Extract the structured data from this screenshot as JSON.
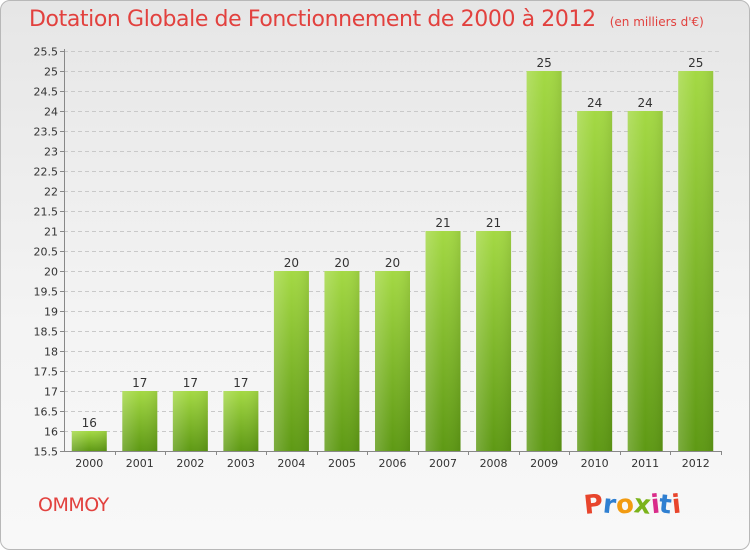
{
  "header": {
    "title": "Dotation Globale de Fonctionnement de 2000 à 2012",
    "unit_note": "(en milliers d'€)"
  },
  "footer": {
    "commune": "OMMOY",
    "brand": "Proxiti"
  },
  "colors": {
    "title": "#e2413e",
    "bar_top": "#9fd63f",
    "bar_bottom": "#5f9b14",
    "grid": "#c8c8c8",
    "axis": "#888888"
  },
  "chart_data": {
    "type": "bar",
    "title": "Dotation Globale de Fonctionnement de 2000 à 2012",
    "subtitle": "(en milliers d'€)",
    "categories": [
      "2000",
      "2001",
      "2002",
      "2003",
      "2004",
      "2005",
      "2006",
      "2007",
      "2008",
      "2009",
      "2010",
      "2011",
      "2012"
    ],
    "values": [
      16,
      17,
      17,
      17,
      20,
      20,
      20,
      21,
      21,
      25,
      24,
      24,
      25
    ],
    "ylim": [
      15.5,
      25.5
    ],
    "yticks": [
      "15.5",
      "16",
      "16.5",
      "17",
      "17.5",
      "18",
      "18.5",
      "19",
      "19.5",
      "20",
      "20.5",
      "21",
      "21.5",
      "22",
      "22.5",
      "23",
      "23.5",
      "24",
      "24.5",
      "25",
      "25.5"
    ],
    "grid": true,
    "data_labels": true
  }
}
